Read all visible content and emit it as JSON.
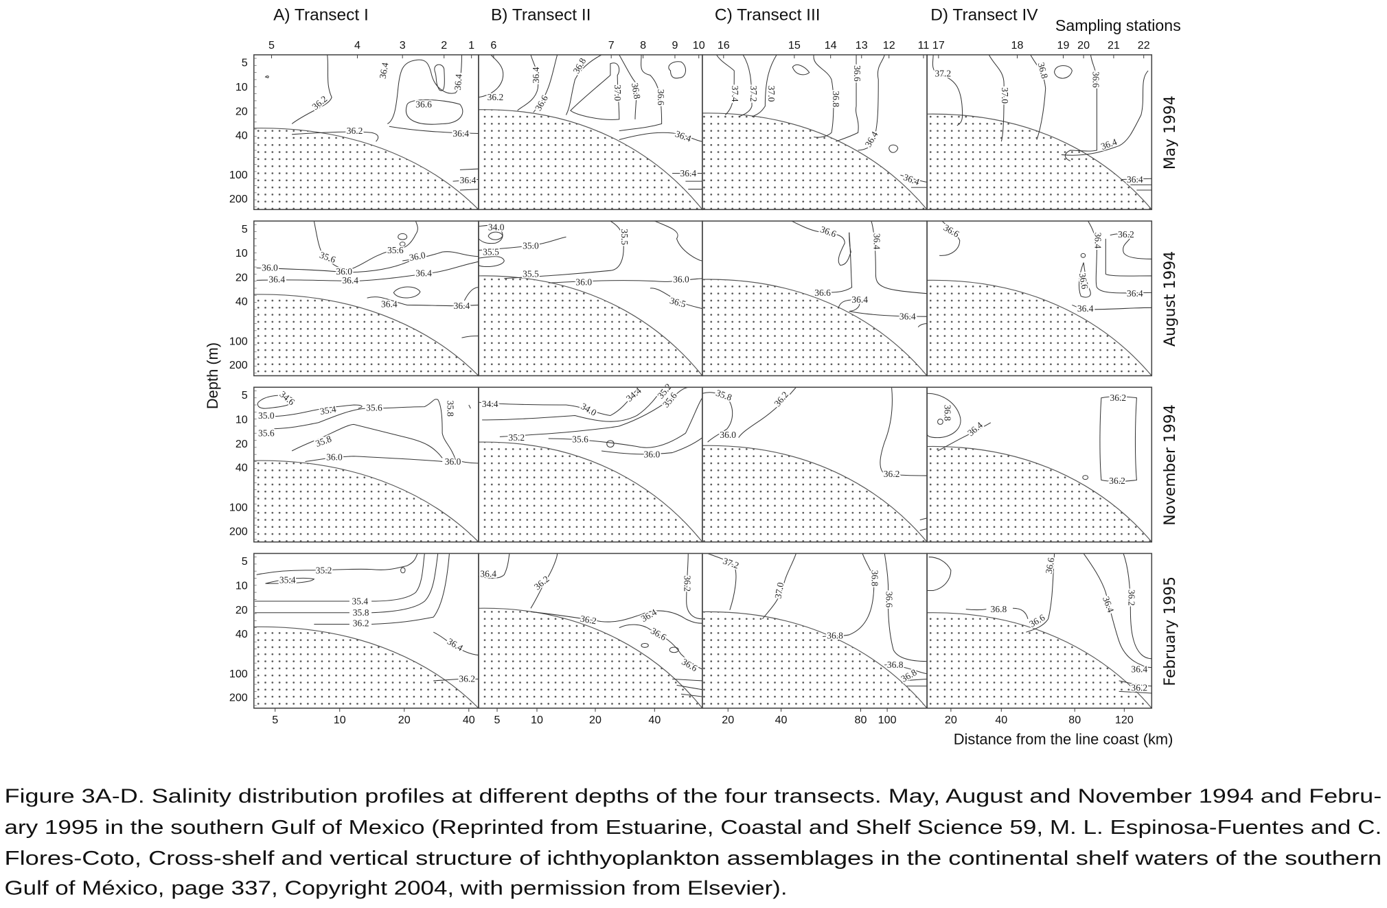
{
  "transect_titles": [
    "A) Transect I",
    "B) Transect II",
    "C) Transect III",
    "D) Transect IV"
  ],
  "stations_title": "Sampling stations",
  "stations": [
    [
      "5",
      "4",
      "3",
      "2",
      "1"
    ],
    [
      "6",
      "7",
      "8",
      "9",
      "10"
    ],
    [
      "16",
      "15",
      "14",
      "13",
      "12",
      "11"
    ],
    [
      "17",
      "18",
      "19",
      "20",
      "21",
      "22"
    ]
  ],
  "depth_axis": {
    "label": "Depth (m)",
    "ticks": [
      "5",
      "10",
      "20",
      "40",
      "100",
      "200"
    ]
  },
  "distance_axis": {
    "label": "Distance from the line coast (km)",
    "ticks": [
      [
        "5",
        "10",
        "20",
        "40"
      ],
      [
        "5",
        "10",
        "20",
        "40"
      ],
      [
        "20",
        "40",
        "80",
        "100"
      ],
      [
        "20",
        "40",
        "80",
        "120"
      ]
    ]
  },
  "rows": [
    {
      "month": "May 1994",
      "panels": [
        {
          "contour_labels": [
            "36.4",
            "36.4",
            "36.2",
            "36.6",
            "36.2",
            "36.4",
            "36.4"
          ]
        },
        {
          "contour_labels": [
            "36.2",
            "36.4",
            "36.6",
            "36.8",
            "37.0",
            "36.8",
            "36.6",
            "36.4",
            "36.4"
          ]
        },
        {
          "contour_labels": [
            "37.4",
            "37.2",
            "37.0",
            "36.8",
            "36.6",
            "36.4",
            "36.4"
          ]
        },
        {
          "contour_labels": [
            "37.2",
            "37.0",
            "36.8",
            "36.6",
            "36.4",
            "36.4"
          ]
        }
      ]
    },
    {
      "month": "August 1994",
      "panels": [
        {
          "contour_labels": [
            "35.6",
            "35.6",
            "36.0",
            "36.0",
            "36.0",
            "36.4",
            "36.4",
            "36.4",
            "36.4",
            "36.4"
          ]
        },
        {
          "contour_labels": [
            "34.0",
            "35.5",
            "35.0",
            "35.5",
            "35.5",
            "36.0",
            "36.0",
            "36.5"
          ]
        },
        {
          "contour_labels": [
            "36.6",
            "36.4",
            "36.6",
            "36.4",
            "36.4"
          ]
        },
        {
          "contour_labels": [
            "36.6",
            "36.4",
            "36.2",
            "36.6",
            "36.4",
            "36.4"
          ]
        }
      ]
    },
    {
      "month": "November 1994",
      "panels": [
        {
          "contour_labels": [
            "34.6",
            "35.0",
            "35.4",
            "35.6",
            "35.8",
            "35.6",
            "35.8",
            "36.0",
            "36.0"
          ]
        },
        {
          "contour_labels": [
            "34.4",
            "34.0",
            "34.4",
            "35.2",
            "35.6",
            "35.2",
            "35.6",
            "36.0"
          ]
        },
        {
          "contour_labels": [
            "35.8",
            "36.2",
            "36.0",
            "36.2"
          ]
        },
        {
          "contour_labels": [
            "36.8",
            "36.4",
            "36.2",
            "36.2"
          ]
        }
      ]
    },
    {
      "month": "February 1995",
      "panels": [
        {
          "contour_labels": [
            "35.2",
            "35.4",
            "35.4",
            "35.8",
            "36.2",
            "36.4",
            "36.2"
          ]
        },
        {
          "contour_labels": [
            "36.4",
            "36.2",
            "36.2",
            "36.2",
            "36.4",
            "36.6",
            "36.6"
          ]
        },
        {
          "contour_labels": [
            "37.2",
            "37.0",
            "36.8",
            "36.6",
            "36.8",
            "36.8",
            "36.8"
          ]
        },
        {
          "contour_labels": [
            "36.6",
            "36.2",
            "36.4",
            "36.8",
            "36.6",
            "36.4",
            "36.2"
          ]
        }
      ]
    }
  ],
  "caption": [
    "Figure 3A-D. Salinity distribution profiles at different depths of the four transects. May, August and November 1994 and Febru-",
    "ary 1995 in the southern Gulf of Mexico (Reprinted from Estuarine, Coastal and Shelf Science 59, M. L. Espinosa-Fuentes and C.",
    "Flores-Coto, Cross-shelf and vertical structure of ichthyoplankton assemblages in the continental shelf waters of the southern",
    "Gulf of México, page 337, Copyright 2004, with permission from Elsevier)."
  ],
  "colors": {
    "ink": "#222222",
    "background": "#ffffff",
    "shelf_stipple": "#555555"
  }
}
